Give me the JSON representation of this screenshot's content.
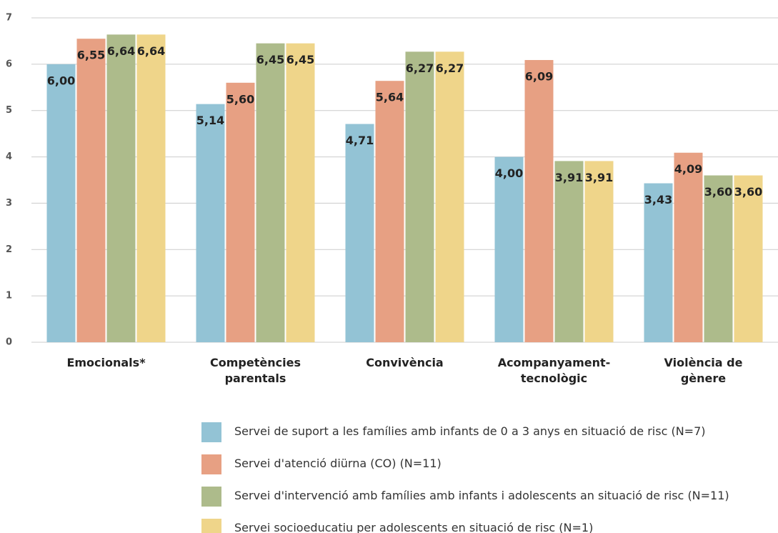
{
  "chart_data": {
    "type": "bar",
    "categories": [
      "Emocionals*",
      "Competències parentals",
      "Convivència",
      "Acompanyament-tecnològic",
      "Violència de gènere"
    ],
    "series": [
      {
        "name": "Servei de suport a les famílies amb infants de 0 a 3 anys en situació de risc (N=7)",
        "color": "#93c3d5",
        "values": [
          6.0,
          5.14,
          4.71,
          4.0,
          3.43
        ],
        "value_labels": [
          "6,00",
          "5,14",
          "4,71",
          "4,00",
          "3,43"
        ]
      },
      {
        "name": "Servei d'atenció diürna (CO) (N=11)",
        "color": "#e7a083",
        "values": [
          6.55,
          5.6,
          5.64,
          6.09,
          4.09
        ],
        "value_labels": [
          "6,55",
          "5,60",
          "5,64",
          "6,09",
          "4,09"
        ]
      },
      {
        "name": "Servei d'intervenció amb famílies amb infants i adolescents an situació de risc (N=11)",
        "color": "#adbb8b",
        "values": [
          6.64,
          6.45,
          6.27,
          3.91,
          3.6
        ],
        "value_labels": [
          "6,64",
          "6,45",
          "6,27",
          "3,91",
          "3,60"
        ]
      },
      {
        "name": "Servei socioeducatiu per adolescents en situació de risc (N=1)",
        "color": "#efd58a",
        "values": [
          6.64,
          6.45,
          6.27,
          3.91,
          3.6
        ],
        "value_labels": [
          "6,64",
          "6,45",
          "6,27",
          "3,91",
          "3,60"
        ]
      }
    ],
    "ylim": [
      0,
      7
    ],
    "yticks": [
      0,
      1,
      2,
      3,
      4,
      5,
      6,
      7
    ],
    "grid": true,
    "legend": "bottom"
  }
}
